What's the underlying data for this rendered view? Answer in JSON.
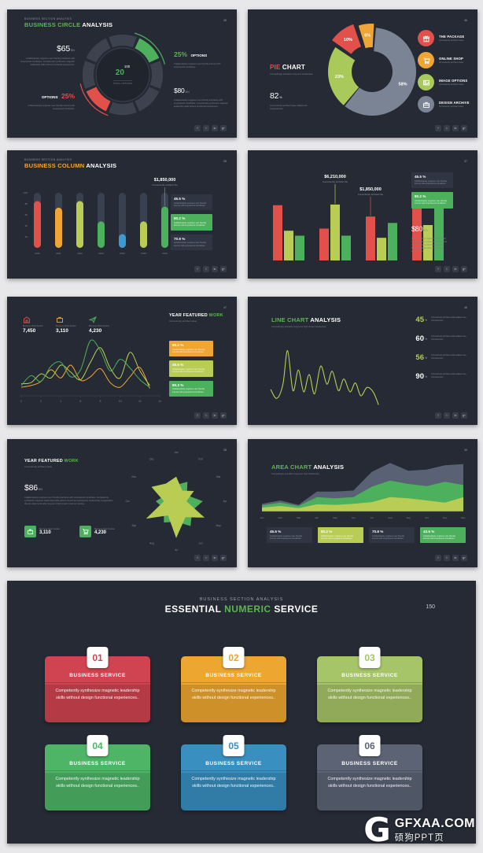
{
  "accent": {
    "green": "#5db551",
    "bar_green": "#4db05c",
    "red": "#e2504c",
    "orange": "#efa636",
    "olive": "#b9cd55",
    "blue": "#3b9ad1",
    "slate": "#596274",
    "pie_gray": "#7b8494"
  },
  "social_glyphs": [
    "f",
    "t",
    "in",
    "g+"
  ],
  "watermark": {
    "logo_letter": "G",
    "brand": "GFXAA.COM",
    "caption": "硕狗PPT页"
  },
  "slides": {
    "s1": {
      "eyebrow": "BUSINESS SECTION ANALYSIS",
      "title_accent": "BUSINESS CIRCLE",
      "title_rest": " ANALYSIS",
      "page": "45",
      "stat_tl": {
        "value": "$65",
        "unit": "BN",
        "desc": "Collaboratively engineer user friendly interfaces with empowered mindshare. Competently synthesize magnetic leadership skills without functional experiences."
      },
      "stat_bl": {
        "label": "OPTIONS",
        "value": "25%",
        "desc": "Collaboratively engineer user friendly internet with empowered mindshare."
      },
      "stat_tr": {
        "value": "25%",
        "label": "OPTIONS",
        "desc": "Collaboratively engineer user friendly internet with empowered mindshare."
      },
      "stat_br": {
        "value": "$80",
        "unit": "BN",
        "desc": "Collaboratively engineer user friendly interfaces with empowered mindshare. Competently synthesize magnetic leadership skills without functional experiences."
      },
      "center": {
        "value": "20",
        "total": "100",
        "caption": "TOTAL OPTIONS"
      }
    },
    "s2": {
      "title_accent": "PIE",
      "title_rest": " CHART",
      "page": "46",
      "subtitle": "Compellingly actualize long term intellectual.",
      "stat": {
        "value": "82",
        "unit": "%",
        "desc": "Conveniently architect value added core competencies."
      },
      "legend": [
        {
          "title": "THE PACKAGE",
          "desc": "Conveniently architect value"
        },
        {
          "title": "ONLINE SHOP",
          "desc": "Conveniently architect value"
        },
        {
          "title": "IMAGE OPTIONS",
          "desc": "Conveniently architect value"
        },
        {
          "title": "DESIGN ARCHIVE",
          "desc": "Conveniently architect value"
        }
      ]
    },
    "s3": {
      "eyebrow": "BUSINESS SECTION ANALYSIS",
      "title_accent": "BUSINESS COLUMN",
      "title_rest": " ANALYSIS",
      "page": "26",
      "boxes": [
        {
          "pct": "45.5 %",
          "desc": "Collaboratively engineer user friendly internet with empowered mindshare."
        },
        {
          "pct": "80.2 %",
          "desc": "Collaboratively engineer user friendly internet with empowered mindshare."
        },
        {
          "pct": "70.8 %",
          "desc": "Collaboratively engineer user friendly internet with empowered mindshare."
        }
      ]
    },
    "s4": {
      "page": "37",
      "boxes": [
        {
          "pct": "45.5 %",
          "desc": "Collaboratively engineer user friendly internet with empowered mindshare."
        },
        {
          "pct": "80.2 %",
          "desc": "Collaboratively engineer user friendly internet with empowered mindshare."
        }
      ],
      "stat": {
        "value": "$80",
        "unit": "BN",
        "desc": "Collaboratively engineer user friendly interfaces with empowered mindshare. Competently synthesize magnetic leadership skills without functional experiences."
      }
    },
    "s5": {
      "page": "47",
      "stats": [
        {
          "label": "Business Chart Section",
          "value": "7,450"
        },
        {
          "label": "Business Chart Section",
          "value": "3,110"
        },
        {
          "label": "Business Chart Section",
          "value": "4,230"
        }
      ],
      "title_main": "YEAR FEATURED",
      "title_accent": " WORK",
      "subtitle": "Conveniently architect value",
      "boxes": [
        {
          "pct": "80.2 %",
          "desc": "Collaboratively engineer user friendly internet with empowered mindshare."
        },
        {
          "pct": "45.5 %",
          "desc": "Collaboratively engineer user friendly internet with empowered mindshare."
        },
        {
          "pct": "80.3 %",
          "desc": "Collaboratively engineer user friendly internet with empowered mindshare."
        }
      ]
    },
    "s6": {
      "page": "48",
      "title_accent": "LINE CHART",
      "title_rest": " ANALYSIS",
      "subtitle": "Compellingly actualize long term high impact intellectual",
      "stats": [
        {
          "value": "45",
          "unit": "%",
          "desc": "Conveniently architect value added core competencies"
        },
        {
          "value": "60",
          "unit": "%",
          "desc": "Conveniently architect value added core competencies"
        },
        {
          "value": "56",
          "unit": "%",
          "desc": "Conveniently architect value added core competencies"
        },
        {
          "value": "90",
          "unit": "%",
          "desc": "Conveniently architect value added core competencies"
        }
      ]
    },
    "s7": {
      "page": "38",
      "title_main": "YEAR FEATURED",
      "title_accent": " WORK",
      "subtitle": "Conveniently architect value",
      "stat": {
        "value": "$86",
        "unit": "BN",
        "desc": "Collaboratively engineer user friendly interfaces with empowered mindshare. Competently synthesize magnetic leadership skills without functional experiences. Distinctively recaptiualize diverse alignments after long term high impact customer service."
      },
      "chips": [
        {
          "label": "Business Chart Section",
          "value": "3,110"
        },
        {
          "label": "Business Chart Section",
          "value": "4,230"
        }
      ]
    },
    "s8": {
      "page": "39",
      "title_accent": "AREA CHART",
      "title_rest": " ANALYSIS",
      "subtitle": "Compellingly actualize long term high intellectual",
      "boxes": [
        {
          "pct": "45.5 %",
          "desc": "Collaboratively engineer user friendly internet with empowered mindshare.",
          "variant": "dark"
        },
        {
          "pct": "80.2 %",
          "desc": "Collaboratively engineer user friendly internet with empowered mindshare.",
          "variant": "olive"
        },
        {
          "pct": "70.8 %",
          "desc": "Collaboratively engineer user friendly internet with empowered mindshare.",
          "variant": "dark"
        },
        {
          "pct": "43.5 %",
          "desc": "Collaboratively engineer user friendly internet with empowered mindshare.",
          "variant": "green"
        }
      ]
    },
    "s9": {
      "eyebrow": "BUSINESS SECTION ANALYSIS",
      "title_pre": "ESSENTIAL ",
      "title_accent": "NUMERIC",
      "title_post": " SERVICE",
      "page": "150",
      "cards": [
        {
          "num": "01",
          "heading": "BUSINESS SERVICE",
          "body": "Competently synthesize magnetic leadership skills without design functional experiences..",
          "color": "#cf4450"
        },
        {
          "num": "02",
          "heading": "BUSINESS SERVICE",
          "body": "Competently synthesize magnetic leadership skills without design functional experiences..",
          "color": "#eda62f"
        },
        {
          "num": "03",
          "heading": "BUSINESS SERVICE",
          "body": "Competently synthesize magnetic leadership skills without design functional experiences..",
          "color": "#a6c468"
        },
        {
          "num": "04",
          "heading": "BUSINESS SERVICE",
          "body": "Competently synthesize magnetic leadership skills without design functional experiences..",
          "color": "#4eb566"
        },
        {
          "num": "05",
          "heading": "BUSINESS SERVICE",
          "body": "Competently synthesize magnetic leadership skills without design functional experiences..",
          "color": "#398fc0"
        },
        {
          "num": "06",
          "heading": "BUSINESS SERVICE",
          "body": "Competently synthesize magnetic leadership skills without design functional experiences..",
          "color": "#5b6375"
        }
      ]
    }
  },
  "chart_data": [
    {
      "id": "donut",
      "type": "donut",
      "title": "BUSINESS CIRCLE ANALYSIS",
      "segment_count": 8,
      "green_segment": 1,
      "red_segment": 5,
      "colors": {
        "base": "#3c424e",
        "green": "#4db05c",
        "red": "#e2504c"
      },
      "center": {
        "value": 20,
        "total": 100,
        "label": "TOTAL OPTIONS"
      },
      "highlights": [
        {
          "label": "OPTIONS",
          "value": 25,
          "color": "#4db05c"
        },
        {
          "label": "OPTIONS",
          "value": 25,
          "color": "#e2504c"
        }
      ]
    },
    {
      "id": "pie",
      "type": "pie",
      "title": "PIE CHART",
      "slices": [
        {
          "label": "58%",
          "value": 58,
          "color": "#7b8494",
          "offset": 0
        },
        {
          "label": "23%",
          "value": 23,
          "color": "#a9c95b",
          "offset": 0
        },
        {
          "label": "10%",
          "value": 10,
          "color": "#e2504c",
          "offset": 9
        },
        {
          "label": "6%",
          "value": 6,
          "color": "#efa636",
          "offset": 5
        }
      ],
      "legend": [
        "THE PACKAGE",
        "ONLINE SHOP",
        "IMAGE OPTIONS",
        "DESIGN ARCHIVE"
      ]
    },
    {
      "id": "columns",
      "type": "bar",
      "title": "BUSINESS COLUMN ANALYSIS",
      "categories": [
        "2010",
        "2011",
        "2012",
        "2013",
        "2014",
        "2015",
        "2016"
      ],
      "values": [
        85,
        73,
        85,
        48,
        25,
        48,
        75
      ],
      "colors": [
        "#e2504c",
        "#efa636",
        "#b9cd55",
        "#4db05c",
        "#3b9ad1",
        "#b9cd55",
        "#4db05c"
      ],
      "ylim": [
        0,
        100
      ],
      "yticks": [
        100,
        80,
        60,
        40,
        20
      ],
      "callout": {
        "value": "$1,850,000",
        "caption": "Conveniently architect the",
        "index": 6
      }
    },
    {
      "id": "grouped",
      "type": "bar",
      "ylim": [
        0,
        100
      ],
      "series": [
        {
          "name": "series-red",
          "color": "#e2504c",
          "values": [
            78,
            45,
            62,
            80
          ]
        },
        {
          "name": "series-olive",
          "color": "#b9cd55",
          "values": [
            42,
            79,
            32,
            50
          ]
        },
        {
          "name": "series-green",
          "color": "#4db05c",
          "values": [
            35,
            35,
            53,
            88
          ]
        }
      ],
      "callouts": [
        {
          "value": "$6,210,000",
          "caption": "Conveniently architect the",
          "group": 1,
          "bar": 1
        },
        {
          "value": "$1,850,000",
          "caption": "Conveniently architect the",
          "group": 2,
          "bar": 0
        }
      ]
    },
    {
      "id": "lines",
      "type": "line",
      "xticks": [
        0,
        2,
        4,
        6,
        8,
        10,
        12,
        14
      ],
      "xlim": [
        0,
        14
      ],
      "ylim": [
        0,
        100
      ],
      "series": [
        {
          "color": "#efa636",
          "points": [
            [
              0,
              12
            ],
            [
              1,
              15
            ],
            [
              2,
              22
            ],
            [
              3,
              42
            ],
            [
              4,
              28
            ],
            [
              5,
              50
            ],
            [
              6,
              24
            ],
            [
              7,
              30
            ],
            [
              8,
              44
            ],
            [
              9,
              20
            ],
            [
              10,
              12
            ],
            [
              11,
              30
            ],
            [
              12,
              46
            ],
            [
              13,
              10
            ]
          ]
        },
        {
          "color": "#b9cd55",
          "points": [
            [
              0,
              18
            ],
            [
              1,
              20
            ],
            [
              2,
              35
            ],
            [
              3,
              28
            ],
            [
              4,
              50
            ],
            [
              5,
              38
            ],
            [
              6,
              25
            ],
            [
              7,
              55
            ],
            [
              8,
              80
            ],
            [
              9,
              45
            ],
            [
              10,
              28
            ],
            [
              11,
              72
            ],
            [
              12,
              40
            ],
            [
              13,
              15
            ]
          ]
        },
        {
          "color": "#4db05c",
          "points": [
            [
              0,
              15
            ],
            [
              1,
              32
            ],
            [
              2,
              22
            ],
            [
              3,
              48
            ],
            [
              4,
              55
            ],
            [
              5,
              30
            ],
            [
              6,
              42
            ],
            [
              7,
              92
            ],
            [
              8,
              75
            ],
            [
              9,
              40
            ],
            [
              10,
              60
            ],
            [
              11,
              45
            ],
            [
              12,
              25
            ],
            [
              13,
              12
            ]
          ]
        }
      ]
    },
    {
      "id": "line",
      "type": "line",
      "xlim": [
        0,
        15
      ],
      "ylim": [
        0,
        100
      ],
      "series": [
        {
          "color": "#b9cd55",
          "points": [
            [
              0,
              32
            ],
            [
              0.8,
              18
            ],
            [
              1.6,
              40
            ],
            [
              2.2,
              92
            ],
            [
              2.9,
              30
            ],
            [
              3.6,
              62
            ],
            [
              4.3,
              28
            ],
            [
              5,
              55
            ],
            [
              5.7,
              25
            ],
            [
              6.5,
              68
            ],
            [
              7.3,
              40
            ],
            [
              8,
              60
            ],
            [
              8.8,
              30
            ],
            [
              9.5,
              48
            ],
            [
              10.3,
              28
            ],
            [
              11,
              42
            ],
            [
              11.7,
              22
            ],
            [
              12.5,
              35
            ],
            [
              13.3,
              28
            ],
            [
              14,
              8
            ]
          ]
        }
      ]
    },
    {
      "id": "radar",
      "type": "radar",
      "categories": [
        "Jan",
        "Feb",
        "Mar",
        "Apr",
        "May",
        "Jun",
        "Jul",
        "Aug",
        "Sep",
        "Oct",
        "Nov",
        "Dec"
      ],
      "series": [
        {
          "color": "#4db05c",
          "values": [
            40,
            55,
            30,
            65,
            45,
            70,
            50,
            60,
            35,
            50,
            30,
            45
          ]
        },
        {
          "color": "#b9cd55",
          "values": [
            60,
            30,
            50,
            25,
            80,
            45,
            90,
            40,
            85,
            30,
            70,
            50
          ]
        }
      ]
    },
    {
      "id": "area",
      "type": "area",
      "title": "AREA CHART ANALYSIS",
      "categories": [
        "Jan",
        "Feb",
        "Mar",
        "Apr",
        "May",
        "Jun",
        "Jul",
        "Aug",
        "Sep",
        "Oct",
        "Nov",
        "Dec"
      ],
      "series": [
        {
          "name": "bottom",
          "color": "#b9cd55",
          "values": [
            7,
            10,
            6,
            13,
            12,
            14,
            17,
            26,
            24,
            20,
            16,
            26
          ]
        },
        {
          "name": "middle",
          "color": "#4db05c",
          "values": [
            4,
            6,
            4,
            13,
            12,
            12,
            28,
            30,
            26,
            26,
            38,
            22
          ]
        },
        {
          "name": "top",
          "color": "#596274",
          "values": [
            3,
            4,
            2,
            10,
            12,
            12,
            27,
            32,
            24,
            30,
            30,
            38
          ]
        }
      ]
    }
  ]
}
